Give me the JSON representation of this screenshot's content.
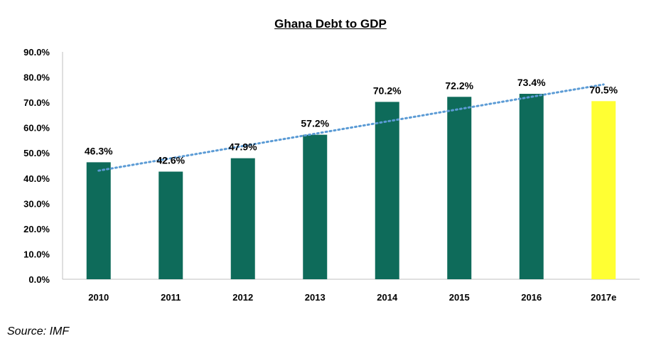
{
  "chart_data": {
    "type": "bar",
    "title": "Ghana Debt to GDP",
    "categories": [
      "2010",
      "2011",
      "2012",
      "2013",
      "2014",
      "2015",
      "2016",
      "2017e"
    ],
    "values": [
      46.3,
      42.6,
      47.9,
      57.2,
      70.2,
      72.2,
      73.4,
      70.5
    ],
    "data_labels": [
      "46.3%",
      "42.6%",
      "47.9%",
      "57.2%",
      "70.2%",
      "72.2%",
      "73.4%",
      "70.5%"
    ],
    "y_ticks": [
      "0.0%",
      "10.0%",
      "20.0%",
      "30.0%",
      "40.0%",
      "50.0%",
      "60.0%",
      "70.0%",
      "80.0%",
      "90.0%"
    ],
    "ylim": [
      0,
      90
    ],
    "xlabel": "",
    "ylabel": "",
    "grid": false,
    "legend": "none",
    "trendline": {
      "type": "linear",
      "style": "dotted",
      "color": "#5b9bd5"
    },
    "colors": {
      "bar": "#0e6b5a",
      "estimate_bar": "#ffff33"
    }
  },
  "source": "Source: IMF"
}
